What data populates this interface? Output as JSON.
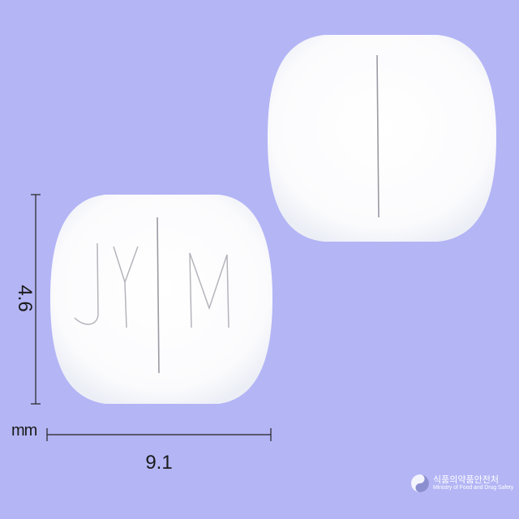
{
  "pill_front": {
    "imprint_left": "JY",
    "imprint_right": "M"
  },
  "dimensions": {
    "height": "4.6",
    "width": "9.1",
    "unit": "mm"
  },
  "logo": {
    "korean_text": "식품의약품안전처",
    "english_text": "Ministry of Food and Drug Safety",
    "icon": "taegeuk-logo-icon"
  },
  "colors": {
    "background": "#b3b5f5",
    "pill": "#ffffff",
    "dimension_line": "#222222"
  }
}
